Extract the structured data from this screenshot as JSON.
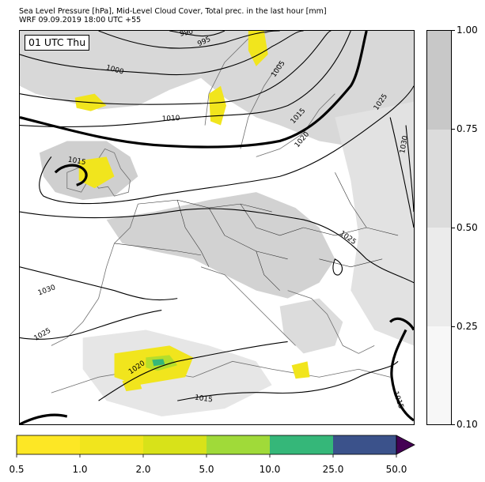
{
  "header": {
    "line1": "Sea Level Pressure [hPa], Mid-Level Cloud Cover, Total prec. in the last hour [mm]",
    "line2": "WRF 09.09.2019 18:00 UTC +55"
  },
  "map": {
    "time_label": "01 UTC Thu",
    "isobar_labels": [
      "990",
      "995",
      "1000",
      "1005",
      "1010",
      "1015",
      "1015",
      "1020",
      "1025",
      "1030",
      "1025",
      "1030",
      "1025",
      "1020",
      "1015",
      "1015"
    ],
    "colors": {
      "coast": "#6e6e6e",
      "isobar": "#000000",
      "cloud_light": "#e8e8e8",
      "cloud_mid": "#d4d4d4",
      "cloud_dark": "#c4c4c4",
      "precip_light": "#f1e51d",
      "precip_mid": "#b5de2b",
      "precip_heavy": "#35b779"
    }
  },
  "cloud_cover_scale": {
    "ticks": [
      "1.00",
      "0.75",
      "0.50",
      "0.25",
      "0.10"
    ],
    "colors": [
      "#c8c8c8",
      "#dcdcdc",
      "#ebebeb",
      "#f7f7f7"
    ]
  },
  "precip_scale": {
    "ticks": [
      "0.5",
      "1.0",
      "2.0",
      "5.0",
      "10.0",
      "25.0",
      "50.0"
    ],
    "colors": [
      "#fde725",
      "#f1e51d",
      "#d8e219",
      "#a0da39",
      "#35b779",
      "#23a3a0",
      "#3b528b"
    ],
    "extend_color": "#440154"
  }
}
